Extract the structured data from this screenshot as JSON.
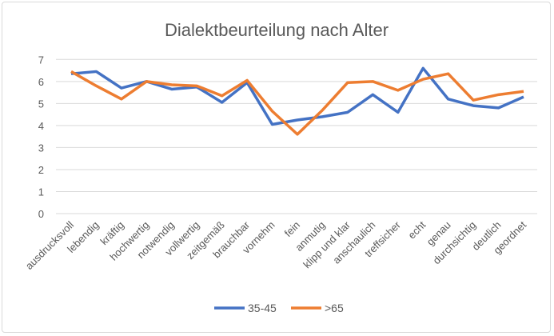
{
  "chart_data": {
    "type": "line",
    "title": "Dialektbeurteilung nach Alter",
    "xlabel": "",
    "ylabel": "",
    "ylim": [
      0,
      7
    ],
    "yticks": [
      "0",
      "1",
      "2",
      "3",
      "4",
      "5",
      "6",
      "7"
    ],
    "grid": true,
    "legend": "bottom",
    "categories": [
      "ausdrucksvoll",
      "lebendig",
      "kräftig",
      "hochwertig",
      "notwendig",
      "vollwertig",
      "zeitgemäß",
      "brauchbar",
      "vornehm",
      "fein",
      "anmutig",
      "klipp und klar",
      "anschaulich",
      "treffsicher",
      "echt",
      "genau",
      "durchsichtig",
      "deutlich",
      "geordnet"
    ],
    "series": [
      {
        "name": "35-45",
        "color": "#4472C4",
        "values": [
          6.35,
          6.45,
          5.7,
          6.0,
          5.65,
          5.75,
          5.05,
          5.95,
          4.05,
          4.25,
          4.4,
          4.6,
          5.4,
          4.6,
          6.6,
          5.2,
          4.9,
          4.8,
          5.3
        ]
      },
      {
        "name": ">65",
        "color": "#ED7D31",
        "values": [
          6.45,
          5.8,
          5.2,
          6.0,
          5.85,
          5.8,
          5.35,
          6.05,
          4.65,
          3.6,
          4.7,
          5.95,
          6.0,
          5.6,
          6.1,
          6.35,
          5.15,
          5.4,
          5.55
        ]
      }
    ]
  }
}
